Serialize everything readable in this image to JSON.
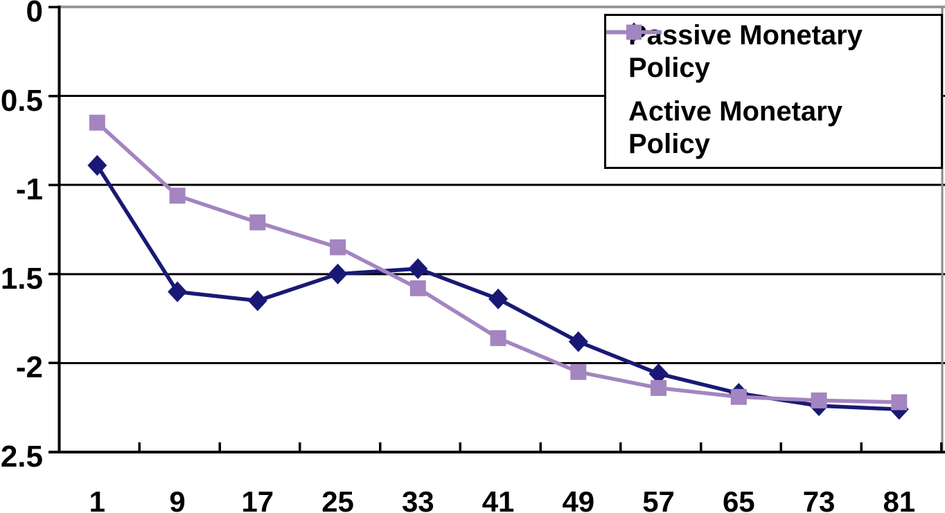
{
  "chart_data": {
    "type": "line",
    "title": "",
    "xlabel": "",
    "ylabel": "",
    "x_categories": [
      "1",
      "9",
      "17",
      "25",
      "33",
      "41",
      "49",
      "57",
      "65",
      "73",
      "81"
    ],
    "y_axis": {
      "range": [
        -2.5,
        0
      ],
      "ticks": [
        0,
        -0.5,
        -1,
        -1.5,
        -2,
        -2.5
      ],
      "tick_labels": [
        "0",
        "-0.5",
        "-1",
        "-1.5",
        "-2",
        "-2.5"
      ],
      "grid": true
    },
    "series": [
      {
        "name": "Passive Monetary Policy",
        "label_lines": [
          "Passive Monetary",
          "Policy"
        ],
        "color": "#191975",
        "marker": "diamond",
        "values": [
          -0.89,
          -1.6,
          -1.65,
          -1.5,
          -1.47,
          -1.64,
          -1.88,
          -2.06,
          -2.17,
          -2.24,
          -2.26
        ]
      },
      {
        "name": "Active Monetary Policy",
        "label_lines": [
          "Active Monetary",
          "Policy"
        ],
        "color": "#A385C0",
        "marker": "square",
        "values": [
          -0.65,
          -1.06,
          -1.21,
          -1.35,
          -1.58,
          -1.86,
          -2.05,
          -2.14,
          -2.19,
          -2.21,
          -2.22
        ]
      }
    ],
    "legend_position": "top-right",
    "colors": {
      "background": "#ffffff",
      "gridline": "#000000",
      "zero_line": "#999999",
      "plot_right_border": "#8a8a8a",
      "axis": "#000000",
      "legend_border": "#000000",
      "text": "#000000"
    }
  }
}
